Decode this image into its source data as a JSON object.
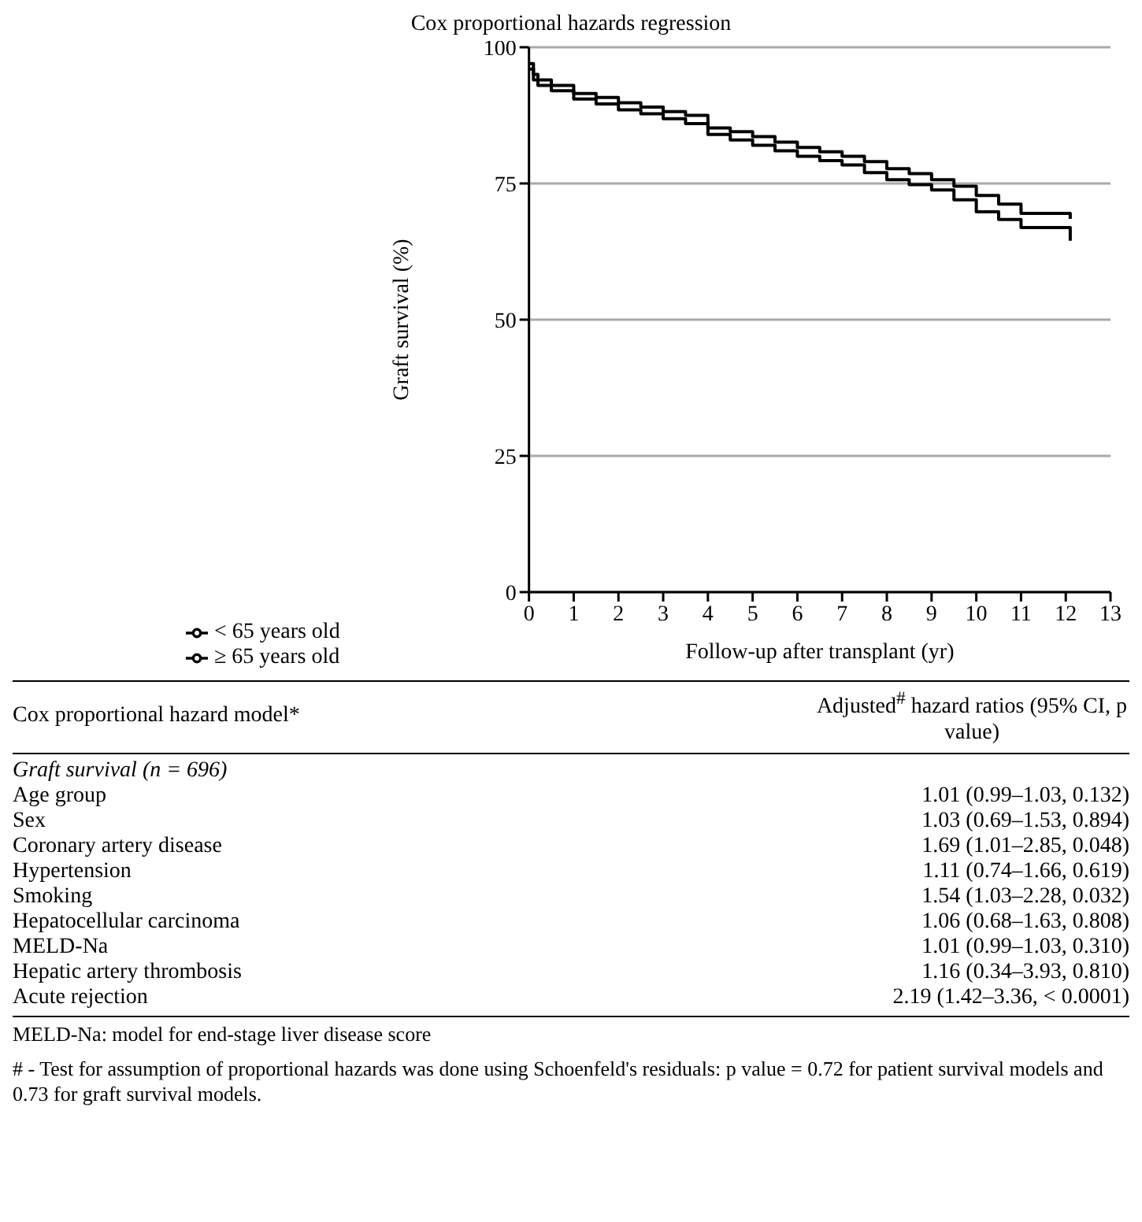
{
  "chart_data": {
    "type": "step",
    "title": "Cox proportional hazards regression",
    "xlabel": "Follow-up after transplant (yr)",
    "ylabel": "Graft survival (%)",
    "series": [
      {
        "name": "< 65 years old",
        "color": "#000000",
        "x": [
          0,
          0.1,
          0.2,
          0.5,
          1,
          1.5,
          2,
          2.5,
          3,
          3.5,
          4,
          4.5,
          5,
          5.5,
          6,
          6.5,
          7,
          7.5,
          8,
          8.5,
          9,
          9.5,
          10,
          10.5,
          11,
          12.1
        ],
        "values": [
          97,
          95,
          94,
          93,
          91.5,
          90.8,
          89.8,
          89,
          88.2,
          87.5,
          85.2,
          84.5,
          83.6,
          82.6,
          81.6,
          80.8,
          80,
          79,
          77.7,
          76.8,
          75.7,
          74.5,
          72.8,
          71.2,
          69.5,
          68.5
        ]
      },
      {
        "name": "≥ 65 years old",
        "color": "#000000",
        "x": [
          0,
          0.1,
          0.2,
          0.5,
          1,
          1.5,
          2,
          2.5,
          3,
          3.5,
          4,
          4.5,
          5,
          5.5,
          6,
          6.5,
          7,
          7.5,
          8,
          8.5,
          9,
          9.5,
          10,
          10.5,
          11,
          12.1
        ],
        "values": [
          96,
          94,
          93,
          92,
          90.5,
          89.6,
          88.5,
          87.8,
          86.9,
          86,
          84,
          83,
          82,
          81,
          80,
          79.2,
          78.4,
          77,
          75.7,
          74.8,
          73.8,
          72,
          69.8,
          68.4,
          66.9,
          64.5
        ]
      }
    ],
    "xlim": [
      0,
      13
    ],
    "xticks": [
      0,
      1,
      2,
      3,
      4,
      5,
      6,
      7,
      8,
      9,
      10,
      11,
      12,
      13
    ],
    "ylim": [
      0,
      100
    ],
    "yticks": [
      0,
      25,
      50,
      75,
      100
    ],
    "grid": "y",
    "legend": "bottom left",
    "line_style": "solid",
    "annotations": [
      "Cox proportional hazard model*",
      "Adjusted$^{#}$ hazard ratios (95% CI, p value)",
      "Graft survival (n = 696)",
      "Age group",
      "1.01 (0.99–1.03, 0.132)",
      "Sex",
      "1.03 (0.69–1.53, 0.894)",
      "Coronary artery disease",
      "1.69 (1.01–2.85, 0.048)",
      "Hypertension",
      "1.11 (0.74–1.66, 0.619)",
      "Smoking",
      "1.54 (1.03–2.28, 0.032)",
      "Hepatocellular carcinoma",
      "1.06 (0.68–1.63, 0.808)",
      "MELD-Na",
      "1.01 (0.99–1.03, 0.310)",
      "Hepatic artery thrombosis",
      "1.16 (0.34–3.93, 0.810)",
      "Acute rejection",
      "2.19 (1.42–3.36, < 0.0001)",
      "MELD-Na: model for end-stage liver disease score",
      "# - Test for assumption of proportional hazards was done using Schoenfeld's residuals: p value = 0.72 for patient survival models and 0.73 for graft survival models."
    ]
  }
}
